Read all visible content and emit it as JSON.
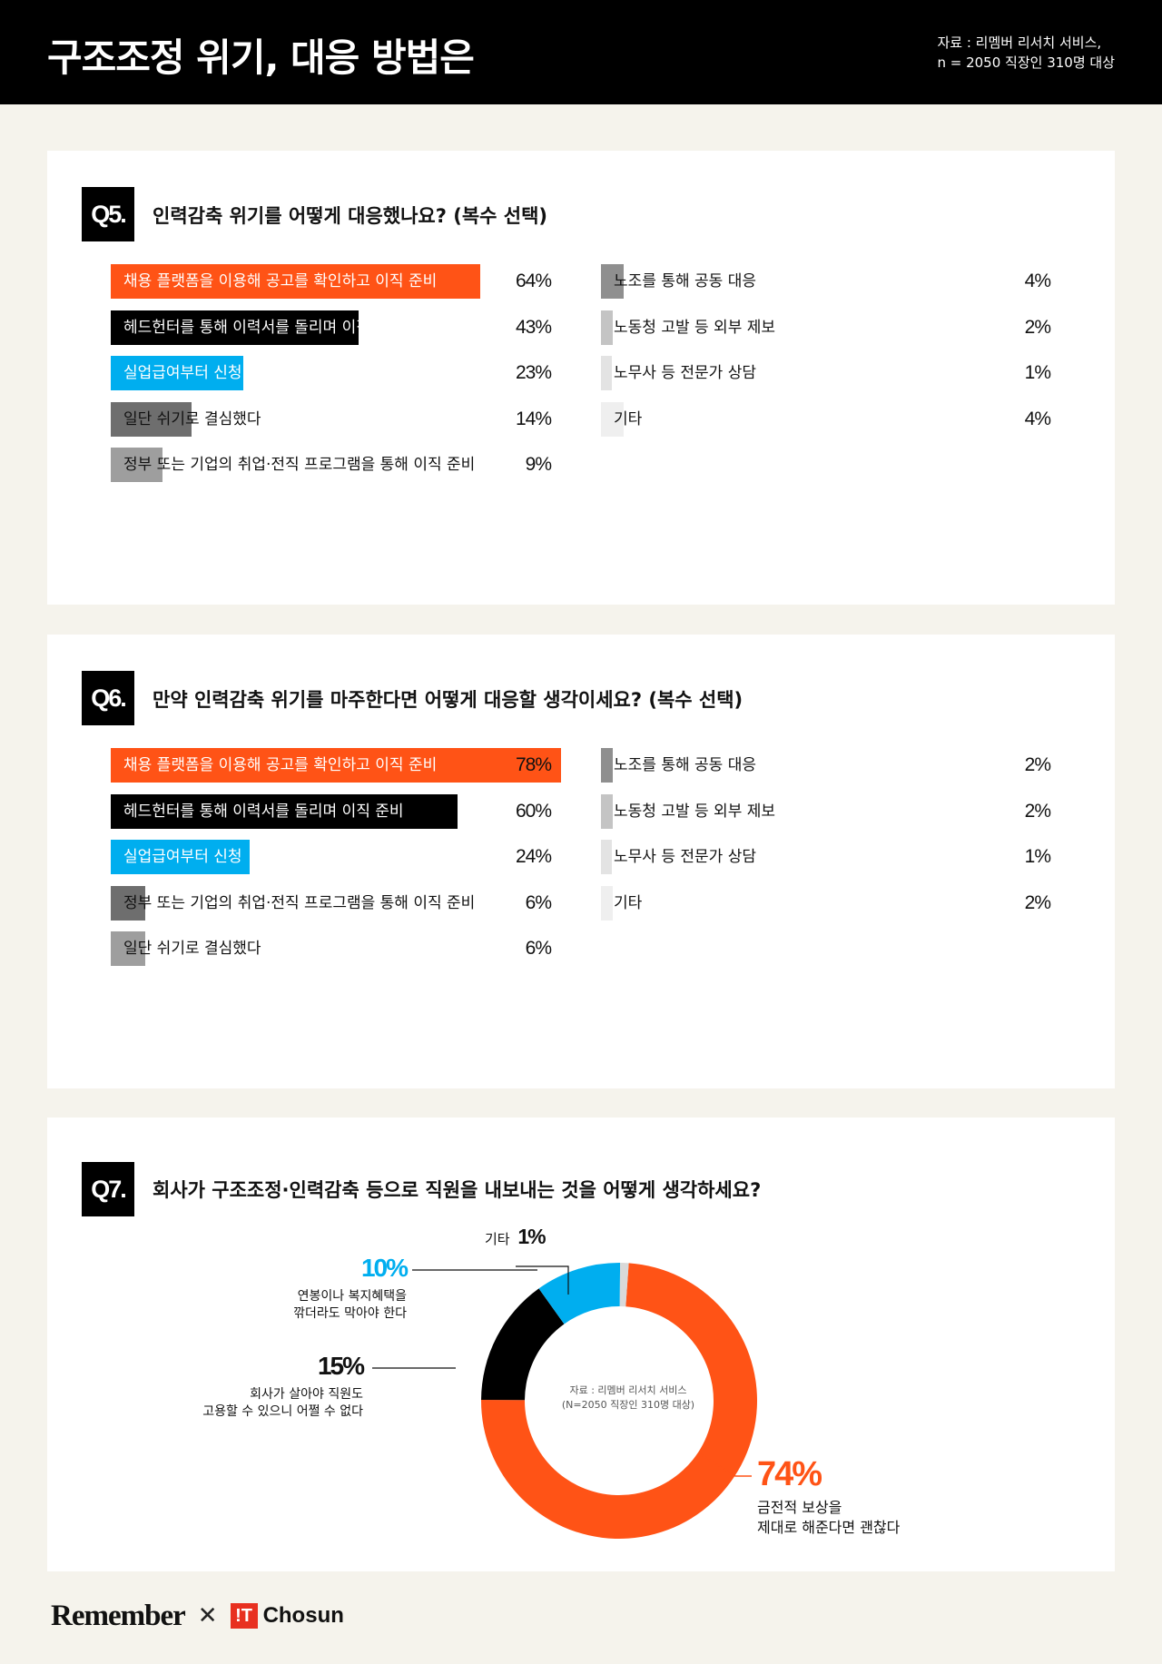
{
  "header": {
    "title": "구조조정 위기, 대응 방법은",
    "source_line1": "자료 : 리멤버 리서치 서비스,",
    "source_line2": "n = 2050 직장인 310명 대상"
  },
  "q5": {
    "badge": "Q5.",
    "question": "인력감축 위기를 어떻게 대응했나요? (복수 선택)",
    "left": [
      {
        "label": "채용 플랫폼을 이용해 공고를 확인하고 이직 준비",
        "value": 64,
        "display": "64%",
        "color": "#ff5316",
        "text_color": "#ffffff"
      },
      {
        "label": "헤드헌터를 통해 이력서를 돌리며 이직 준비",
        "value": 43,
        "display": "43%",
        "color": "#000000",
        "text_color": "#ffffff"
      },
      {
        "label": "실업급여부터 신청",
        "value": 23,
        "display": "23%",
        "color": "#00aeef",
        "text_color": "#ffffff"
      },
      {
        "label": "일단 쉬기로 결심했다",
        "value": 14,
        "display": "14%",
        "color": "#6e6e6e",
        "text_color": "#111111"
      },
      {
        "label": "정부 또는 기업의 취업·전직 프로그램을 통해 이직 준비",
        "value": 9,
        "display": "9%",
        "color": "#9e9e9e",
        "text_color": "#111111"
      }
    ],
    "right": [
      {
        "label": "노조를 통해 공동 대응",
        "value": 4,
        "display": "4%",
        "color": "#8f8f8f",
        "text_color": "#111111"
      },
      {
        "label": "노동청 고발 등 외부 제보",
        "value": 2,
        "display": "2%",
        "color": "#c4c4c4",
        "text_color": "#111111"
      },
      {
        "label": "노무사 등 전문가 상담",
        "value": 1,
        "display": "1%",
        "color": "#e3e3e3",
        "text_color": "#111111"
      },
      {
        "label": "기타",
        "value": 4,
        "display": "4%",
        "color": "#efefef",
        "text_color": "#111111"
      }
    ]
  },
  "q6": {
    "badge": "Q6.",
    "question": "만약 인력감축 위기를 마주한다면 어떻게 대응할 생각이세요? (복수 선택)",
    "left": [
      {
        "label": "채용 플랫폼을 이용해 공고를 확인하고 이직 준비",
        "value": 78,
        "display": "78%",
        "color": "#ff5316",
        "text_color": "#ffffff"
      },
      {
        "label": "헤드헌터를 통해 이력서를 돌리며 이직 준비",
        "value": 60,
        "display": "60%",
        "color": "#000000",
        "text_color": "#ffffff"
      },
      {
        "label": "실업급여부터 신청",
        "value": 24,
        "display": "24%",
        "color": "#00aeef",
        "text_color": "#ffffff"
      },
      {
        "label": "정부 또는 기업의 취업·전직 프로그램을 통해 이직 준비",
        "value": 6,
        "display": "6%",
        "color": "#6e6e6e",
        "text_color": "#111111"
      },
      {
        "label": "일단 쉬기로 결심했다",
        "value": 6,
        "display": "6%",
        "color": "#9e9e9e",
        "text_color": "#111111"
      }
    ],
    "right": [
      {
        "label": "노조를 통해 공동 대응",
        "value": 2,
        "display": "2%",
        "color": "#8f8f8f",
        "text_color": "#111111"
      },
      {
        "label": "노동청 고발 등 외부 제보",
        "value": 2,
        "display": "2%",
        "color": "#c4c4c4",
        "text_color": "#111111"
      },
      {
        "label": "노무사 등 전문가 상담",
        "value": 1,
        "display": "1%",
        "color": "#e3e3e3",
        "text_color": "#111111"
      },
      {
        "label": "기타",
        "value": 2,
        "display": "2%",
        "color": "#efefef",
        "text_color": "#111111"
      }
    ]
  },
  "q7": {
    "badge": "Q7.",
    "question": "회사가 구조조정·인력감축 등으로 직원을 내보내는 것을 어떻게 생각하세요?",
    "center_line1": "자료 : 리멤버 리서치 서비스",
    "center_line2": "(N=2050 직장인 310명 대상)",
    "label_74_pct": "74%",
    "label_74_line1": "금전적 보상을",
    "label_74_line2": "제대로 해준다면 괜찮다",
    "label_15_pct": "15%",
    "label_15_line1": "회사가 살아야 직원도",
    "label_15_line2": "고용할 수 있으니 어쩔 수 없다",
    "label_10_pct": "10%",
    "label_10_line1": "연봉이나 복지혜택을",
    "label_10_line2": "깎더라도 막아야 한다",
    "label_etc_name": "기타",
    "label_etc_pct": "1%"
  },
  "chart_data": [
    {
      "type": "bar",
      "title": "인력감축 위기를 어떻게 대응했나요? (복수 선택)",
      "categories": [
        "채용 플랫폼을 이용해 공고를 확인하고 이직 준비",
        "헤드헌터를 통해 이력서를 돌리며 이직 준비",
        "실업급여부터 신청",
        "일단 쉬기로 결심했다",
        "정부 또는 기업의 취업·전직 프로그램을 통해 이직 준비",
        "노조를 통해 공동 대응",
        "노동청 고발 등 외부 제보",
        "노무사 등 전문가 상담",
        "기타"
      ],
      "values": [
        64,
        43,
        23,
        14,
        9,
        4,
        2,
        1,
        4
      ],
      "unit": "%"
    },
    {
      "type": "bar",
      "title": "만약 인력감축 위기를 마주한다면 어떻게 대응할 생각이세요? (복수 선택)",
      "categories": [
        "채용 플랫폼을 이용해 공고를 확인하고 이직 준비",
        "헤드헌터를 통해 이력서를 돌리며 이직 준비",
        "실업급여부터 신청",
        "정부 또는 기업의 취업·전직 프로그램을 통해 이직 준비",
        "일단 쉬기로 결심했다",
        "노조를 통해 공동 대응",
        "노동청 고발 등 외부 제보",
        "노무사 등 전문가 상담",
        "기타"
      ],
      "values": [
        78,
        60,
        24,
        6,
        6,
        2,
        2,
        1,
        2
      ],
      "unit": "%"
    },
    {
      "type": "pie",
      "title": "회사가 구조조정·인력감축 등으로 직원을 내보내는 것을 어떻게 생각하세요?",
      "categories": [
        "금전적 보상을 제대로 해준다면 괜찮다",
        "회사가 살아야 직원도 고용할 수 있으니 어쩔 수 없다",
        "연봉이나 복지혜택을 깎더라도 막아야 한다",
        "기타"
      ],
      "values": [
        74,
        15,
        10,
        1
      ],
      "colors": [
        "#ff5316",
        "#000000",
        "#00aeef",
        "#d9d9d9"
      ],
      "unit": "%"
    }
  ]
}
